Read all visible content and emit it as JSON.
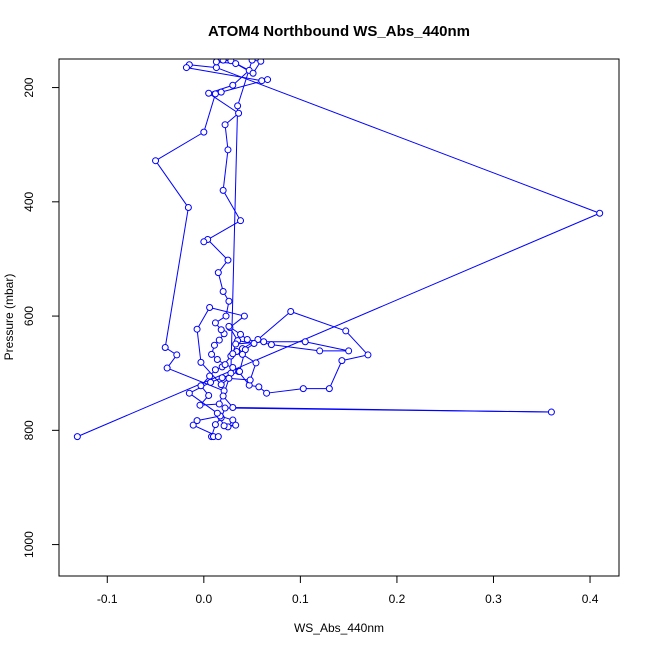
{
  "chart_data": {
    "type": "line",
    "title": "ATOM4 Northbound WS_Abs_440nm",
    "xlabel": "WS_Abs_440nm",
    "ylabel": "Pressure (mbar)",
    "xlim": [
      -0.15,
      0.43
    ],
    "ylim": [
      1055,
      150
    ],
    "y_axis_reversed": true,
    "x_ticks": [
      -0.1,
      0.0,
      0.1,
      0.2,
      0.3,
      0.4
    ],
    "x_tick_labels": [
      "-0.1",
      "0.0",
      "0.1",
      "0.2",
      "0.3",
      "0.4"
    ],
    "y_ticks": [
      200,
      400,
      600,
      800,
      1000
    ],
    "y_tick_labels": [
      "200",
      "400",
      "600",
      "800",
      "1000"
    ],
    "grid": false,
    "legend": "none",
    "series": [
      {
        "color": "#0000ff",
        "marker": "open-circle",
        "points": [
          [
            -0.131,
            811
          ],
          [
            0.41,
            420
          ],
          [
            0.013,
            165
          ],
          [
            -0.015,
            160
          ],
          [
            -0.018,
            165
          ],
          [
            0.06,
            188
          ],
          [
            0.066,
            186
          ],
          [
            0.018,
            208
          ],
          [
            0.012,
            211
          ],
          [
            0.0,
            278
          ],
          [
            -0.05,
            328
          ],
          [
            -0.016,
            410
          ],
          [
            -0.04,
            655
          ],
          [
            -0.028,
            668
          ],
          [
            -0.038,
            691
          ],
          [
            0.021,
            731
          ],
          [
            0.016,
            754
          ],
          [
            -0.004,
            756
          ],
          [
            0.005,
            739
          ],
          [
            -0.003,
            722
          ],
          [
            0.006,
            705
          ],
          [
            0.012,
            694
          ],
          [
            0.019,
            689
          ],
          [
            0.028,
            670
          ],
          [
            0.034,
            662
          ],
          [
            0.04,
            657
          ],
          [
            0.056,
            641
          ],
          [
            0.09,
            592
          ],
          [
            0.147,
            626
          ],
          [
            0.17,
            668
          ],
          [
            0.143,
            678
          ],
          [
            0.13,
            727
          ],
          [
            0.103,
            727
          ],
          [
            0.065,
            735
          ],
          [
            0.057,
            724
          ],
          [
            0.047,
            721
          ],
          [
            0.036,
            697
          ],
          [
            0.03,
            690
          ],
          [
            0.022,
            685
          ],
          [
            0.014,
            676
          ],
          [
            0.008,
            667
          ],
          [
            0.011,
            651
          ],
          [
            0.016,
            642
          ],
          [
            0.021,
            631
          ],
          [
            0.018,
            624
          ],
          [
            0.012,
            612
          ],
          [
            0.023,
            600
          ],
          [
            0.026,
            574
          ],
          [
            0.02,
            557
          ],
          [
            0.015,
            524
          ],
          [
            0.025,
            502
          ],
          [
            0.004,
            466
          ],
          [
            0.0,
            470
          ],
          [
            0.038,
            433
          ],
          [
            0.02,
            380
          ],
          [
            0.025,
            309
          ],
          [
            0.022,
            265
          ],
          [
            0.036,
            245
          ],
          [
            0.005,
            210
          ],
          [
            0.03,
            196
          ],
          [
            0.047,
            170
          ],
          [
            0.028,
            153
          ],
          [
            0.02,
            152
          ],
          [
            0.013,
            155
          ],
          [
            0.033,
            158
          ],
          [
            0.051,
            175
          ],
          [
            0.059,
            154
          ],
          [
            0.05,
            152
          ],
          [
            0.035,
            232
          ],
          [
            0.028,
            700
          ],
          [
            0.02,
            740
          ],
          [
            0.03,
            760
          ],
          [
            0.36,
            768
          ],
          [
            0.022,
            761
          ],
          [
            0.018,
            778
          ],
          [
            0.012,
            790
          ],
          [
            0.008,
            811
          ],
          [
            0.01,
            811
          ],
          [
            0.015,
            811
          ],
          [
            -0.011,
            791
          ],
          [
            -0.007,
            783
          ],
          [
            0.017,
            775
          ],
          [
            0.03,
            782
          ],
          [
            0.025,
            794
          ],
          [
            0.033,
            791
          ],
          [
            0.021,
            792
          ],
          [
            0.014,
            770
          ],
          [
            -0.015,
            735
          ],
          [
            0.007,
            716
          ],
          [
            0.019,
            708
          ],
          [
            0.037,
            697
          ],
          [
            0.043,
            659
          ],
          [
            0.052,
            648
          ],
          [
            0.035,
            643
          ],
          [
            0.027,
            620
          ],
          [
            0.042,
            600
          ],
          [
            0.006,
            585
          ],
          [
            -0.007,
            623
          ],
          [
            -0.003,
            681
          ],
          [
            0.018,
            720
          ],
          [
            0.026,
            709
          ],
          [
            0.048,
            712
          ],
          [
            0.054,
            682
          ],
          [
            0.04,
            667
          ],
          [
            0.03,
            666
          ],
          [
            0.033,
            649
          ],
          [
            0.062,
            645
          ],
          [
            0.105,
            645
          ],
          [
            0.15,
            661
          ],
          [
            0.12,
            661
          ],
          [
            0.07,
            650
          ],
          [
            0.045,
            641
          ],
          [
            0.038,
            632
          ],
          [
            0.026,
            618
          ]
        ]
      }
    ]
  }
}
